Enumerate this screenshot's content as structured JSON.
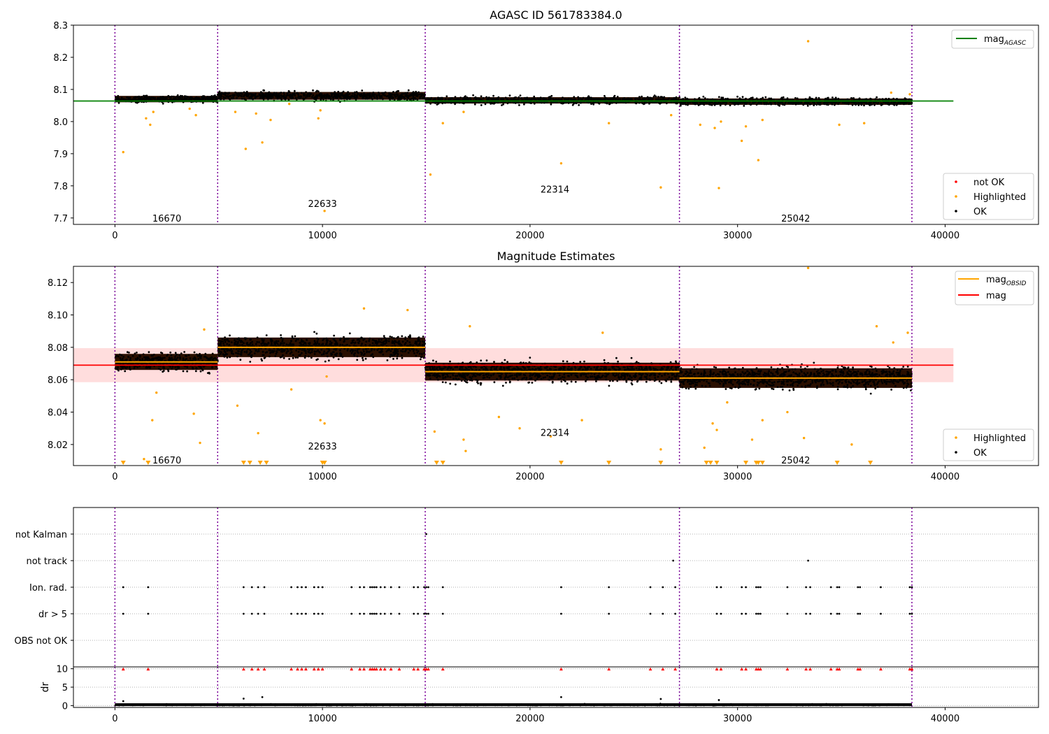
{
  "chart_data": [
    {
      "type": "scatter",
      "title": "AGASC ID 561783384.0",
      "xlabel": "",
      "ylabel": "",
      "xlim": [
        -2000,
        44500
      ],
      "ylim": [
        7.68,
        8.3
      ],
      "x_ticks": [
        0,
        10000,
        20000,
        30000,
        40000
      ],
      "x_tick_labels": [
        "0",
        "10000",
        "20000",
        "30000",
        "40000"
      ],
      "y_ticks": [
        7.7,
        7.8,
        7.9,
        8.0,
        8.1,
        8.2,
        8.3
      ],
      "y_tick_labels": [
        "7.7",
        "7.8",
        "7.9",
        "8.0",
        "8.1",
        "8.2",
        "8.3"
      ],
      "obsid_boundaries": [
        0,
        4950,
        14950,
        27200,
        38400
      ],
      "obsid_labels": [
        {
          "text": "16670",
          "x": 2500,
          "y": 7.7
        },
        {
          "text": "22633",
          "x": 10000,
          "y": 7.745
        },
        {
          "text": "22314",
          "x": 21200,
          "y": 7.79
        },
        {
          "text": "25042",
          "x": 32800,
          "y": 7.7
        }
      ],
      "mag_agasc": 8.064,
      "mag_agasc_xrange": [
        -2000,
        40400
      ],
      "ok_bands": [
        {
          "x0": 0,
          "x1": 4950,
          "center": 8.07,
          "half_width": 0.018
        },
        {
          "x0": 4950,
          "x1": 14950,
          "center": 8.08,
          "half_width": 0.022
        },
        {
          "x0": 14950,
          "x1": 27200,
          "center": 8.066,
          "half_width": 0.018
        },
        {
          "x0": 27200,
          "x1": 38400,
          "center": 8.062,
          "half_width": 0.018
        }
      ],
      "highlighted_points": [
        [
          400,
          7.905
        ],
        [
          1500,
          8.01
        ],
        [
          1700,
          7.99
        ],
        [
          1850,
          8.03
        ],
        [
          3600,
          8.04
        ],
        [
          3900,
          8.02
        ],
        [
          5800,
          8.03
        ],
        [
          6300,
          7.915
        ],
        [
          6800,
          8.025
        ],
        [
          7100,
          7.935
        ],
        [
          7500,
          8.005
        ],
        [
          8400,
          8.055
        ],
        [
          9800,
          8.01
        ],
        [
          9900,
          8.035
        ],
        [
          10100,
          7.722
        ],
        [
          15200,
          7.835
        ],
        [
          15800,
          7.995
        ],
        [
          16800,
          8.03
        ],
        [
          21500,
          7.87
        ],
        [
          23800,
          7.995
        ],
        [
          26300,
          7.795
        ],
        [
          26800,
          8.02
        ],
        [
          28200,
          7.99
        ],
        [
          28900,
          7.98
        ],
        [
          29100,
          7.793
        ],
        [
          29200,
          8.0
        ],
        [
          30200,
          7.94
        ],
        [
          30400,
          7.985
        ],
        [
          31000,
          7.88
        ],
        [
          31200,
          8.005
        ],
        [
          33400,
          8.25
        ],
        [
          34900,
          7.99
        ],
        [
          36100,
          7.995
        ],
        [
          37400,
          8.09
        ],
        [
          38300,
          8.085
        ]
      ],
      "legend_upper": {
        "entries": [
          {
            "label": "mag",
            "sub": "AGASC",
            "color": "#008000"
          }
        ],
        "placement": "upper right"
      },
      "legend_lower": {
        "entries": [
          {
            "label": "not OK",
            "color": "#ff0000"
          },
          {
            "label": "Highlighted",
            "color": "#ffa500"
          },
          {
            "label": "OK",
            "color": "#000000"
          }
        ],
        "placement": "lower right"
      },
      "grid": false
    },
    {
      "type": "scatter",
      "title": "Magnitude Estimates",
      "xlabel": "",
      "ylabel": "",
      "xlim": [
        -2000,
        44500
      ],
      "ylim": [
        8.007,
        8.13
      ],
      "x_ticks": [
        0,
        10000,
        20000,
        30000,
        40000
      ],
      "x_tick_labels": [
        "0",
        "10000",
        "20000",
        "30000",
        "40000"
      ],
      "y_ticks": [
        8.02,
        8.04,
        8.06,
        8.08,
        8.1,
        8.12
      ],
      "y_tick_labels": [
        "8.02",
        "8.04",
        "8.06",
        "8.08",
        "8.10",
        "8.12"
      ],
      "obsid_boundaries": [
        0,
        4950,
        14950,
        27200,
        38400
      ],
      "obsid_labels": [
        {
          "text": "16670",
          "x": 2500,
          "y": 8.0105
        },
        {
          "text": "22633",
          "x": 10000,
          "y": 8.019
        },
        {
          "text": "22314",
          "x": 21200,
          "y": 8.0275
        },
        {
          "text": "25042",
          "x": 32800,
          "y": 8.0105
        }
      ],
      "mag": 8.069,
      "mag_band": [
        8.0585,
        8.0795
      ],
      "mag_xrange": [
        -2000,
        40400
      ],
      "mag_obsid": [
        {
          "x0": 0,
          "x1": 4950,
          "value": 8.071
        },
        {
          "x0": 4950,
          "x1": 14950,
          "value": 8.08
        },
        {
          "x0": 14950,
          "x1": 27200,
          "value": 8.065
        },
        {
          "x0": 27200,
          "x1": 38400,
          "value": 8.061
        }
      ],
      "ok_bands": [
        {
          "x0": 0,
          "x1": 4950,
          "center": 8.071,
          "half_width": 0.009
        },
        {
          "x0": 4950,
          "x1": 14950,
          "center": 8.08,
          "half_width": 0.011
        },
        {
          "x0": 14950,
          "x1": 27200,
          "center": 8.065,
          "half_width": 0.01
        },
        {
          "x0": 27200,
          "x1": 38400,
          "center": 8.061,
          "half_width": 0.011
        }
      ],
      "highlighted_points": [
        [
          1400,
          8.011
        ],
        [
          1800,
          8.035
        ],
        [
          2000,
          8.052
        ],
        [
          3800,
          8.039
        ],
        [
          4100,
          8.021
        ],
        [
          4300,
          8.091
        ],
        [
          5900,
          8.044
        ],
        [
          6900,
          8.027
        ],
        [
          8500,
          8.054
        ],
        [
          9900,
          8.035
        ],
        [
          10100,
          8.033
        ],
        [
          10200,
          8.062
        ],
        [
          12000,
          8.104
        ],
        [
          14100,
          8.103
        ],
        [
          15400,
          8.028
        ],
        [
          16800,
          8.023
        ],
        [
          16900,
          8.016
        ],
        [
          17100,
          8.093
        ],
        [
          18500,
          8.037
        ],
        [
          19500,
          8.03
        ],
        [
          21000,
          8.025
        ],
        [
          22500,
          8.035
        ],
        [
          23500,
          8.089
        ],
        [
          26300,
          8.017
        ],
        [
          28400,
          8.018
        ],
        [
          28800,
          8.033
        ],
        [
          29000,
          8.029
        ],
        [
          29500,
          8.046
        ],
        [
          30700,
          8.023
        ],
        [
          31200,
          8.035
        ],
        [
          32400,
          8.04
        ],
        [
          33200,
          8.024
        ],
        [
          33400,
          8.129
        ],
        [
          35500,
          8.02
        ],
        [
          36700,
          8.093
        ],
        [
          37500,
          8.083
        ],
        [
          38200,
          8.089
        ]
      ],
      "clipped_low_points": [
        400,
        1600,
        6200,
        6500,
        7000,
        7300,
        10000,
        10100,
        15500,
        15800,
        21500,
        23800,
        26300,
        28500,
        28700,
        29000,
        30400,
        30900,
        31000,
        31200,
        34800,
        36400
      ],
      "legend_upper": {
        "entries": [
          {
            "label": "mag",
            "sub": "OBSID",
            "color": "#ffa500"
          },
          {
            "label": "mag",
            "sub": "",
            "color": "#ff0000"
          }
        ],
        "placement": "upper right"
      },
      "legend_lower": {
        "entries": [
          {
            "label": "Highlighted",
            "color": "#ffa500"
          },
          {
            "label": "OK",
            "color": "#000000"
          }
        ],
        "placement": "lower right"
      },
      "grid": false
    },
    {
      "type": "scatter",
      "title": "",
      "xlabel": "",
      "ylabel": "",
      "xlim": [
        -2000,
        44500
      ],
      "categories": [
        "not Kalman",
        "not track",
        "Ion. rad.",
        "dr > 5",
        "OBS not OK"
      ],
      "obsid_boundaries": [
        0,
        4950,
        14950,
        27200,
        38400
      ],
      "flags": {
        "not Kalman": [
          15000
        ],
        "not track": [
          26900,
          33400
        ],
        "Ion. rad.": [
          400,
          1600,
          6200,
          6600,
          6900,
          7200,
          8500,
          8800,
          9000,
          9200,
          9600,
          9800,
          10000,
          11400,
          11800,
          12000,
          12300,
          12400,
          12500,
          12600,
          12800,
          13000,
          13300,
          13700,
          14400,
          14600,
          14900,
          15000,
          15100,
          15800,
          21500,
          23800,
          25800,
          26400,
          27000,
          29000,
          29200,
          30200,
          30400,
          30900,
          31000,
          31100,
          32400,
          33300,
          33500,
          34500,
          34800,
          34900,
          35800,
          35900,
          36900,
          38300,
          38400
        ],
        "dr > 5": [
          400,
          1600,
          6200,
          6600,
          6900,
          7200,
          8500,
          8800,
          9000,
          9200,
          9600,
          9800,
          10000,
          11400,
          11800,
          12000,
          12300,
          12400,
          12500,
          12600,
          12800,
          13000,
          13300,
          13700,
          14400,
          14600,
          14900,
          15000,
          15100,
          15800,
          21500,
          23800,
          25800,
          26400,
          27000,
          29000,
          29200,
          30200,
          30400,
          30900,
          31000,
          31100,
          32400,
          33300,
          33500,
          34500,
          34800,
          34900,
          35800,
          35900,
          36900,
          38300,
          38400
        ],
        "OBS not OK": []
      },
      "grid": true
    },
    {
      "type": "scatter",
      "title": "",
      "xlabel": "",
      "ylabel": "dr",
      "xlim": [
        -2000,
        44500
      ],
      "ylim": [
        -0.5,
        10.5
      ],
      "x_ticks": [
        0,
        10000,
        20000,
        30000,
        40000
      ],
      "x_tick_labels": [
        "0",
        "10000",
        "20000",
        "30000",
        "40000"
      ],
      "y_ticks": [
        0,
        5,
        10
      ],
      "y_tick_labels": [
        "0",
        "5",
        "10"
      ],
      "obsid_boundaries": [
        0,
        4950,
        14950,
        27200,
        38400
      ],
      "clipped_high_points": [
        400,
        1600,
        6200,
        6600,
        6900,
        7200,
        8500,
        8800,
        9000,
        9200,
        9600,
        9800,
        10000,
        11400,
        11800,
        12000,
        12300,
        12400,
        12500,
        12600,
        12800,
        13000,
        13300,
        13700,
        14400,
        14600,
        14900,
        15000,
        15100,
        15800,
        21500,
        23800,
        25800,
        26400,
        27000,
        29000,
        29200,
        30200,
        30400,
        30900,
        31000,
        31100,
        32400,
        33300,
        33500,
        34500,
        34800,
        34900,
        35800,
        35900,
        36900,
        38300,
        38400
      ],
      "outlier_points": [
        [
          400,
          1.2
        ],
        [
          6200,
          1.9
        ],
        [
          7100,
          2.3
        ],
        [
          21500,
          2.3
        ],
        [
          26300,
          1.8
        ],
        [
          29100,
          1.5
        ]
      ],
      "grid": true
    }
  ]
}
